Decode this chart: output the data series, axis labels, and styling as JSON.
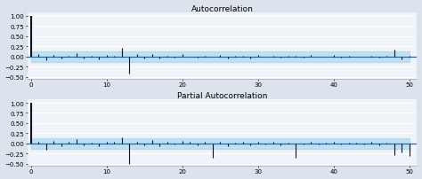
{
  "title_acf": "Autocorrelation",
  "title_pacf": "Partial Autocorrelation",
  "ylim": [
    -0.55,
    1.08
  ],
  "yticks": [
    -0.5,
    -0.25,
    0.0,
    0.25,
    0.5,
    0.75,
    1.0
  ],
  "xlim": [
    -0.5,
    51
  ],
  "xticks": [
    0,
    10,
    20,
    30,
    40,
    50
  ],
  "conf_band": 0.13,
  "background_color": "#dde3ec",
  "plot_bg": "#f0f4f8",
  "bar_color": "#111122",
  "conf_color": "#a8d4f0",
  "line_color": "#1a6ab5",
  "title_fontsize": 6.5,
  "tick_fontsize": 5,
  "acf_values": [
    1.0,
    0.05,
    -0.1,
    0.03,
    -0.05,
    0.02,
    0.08,
    -0.04,
    0.01,
    -0.08,
    0.04,
    0.02,
    0.22,
    -0.42,
    0.05,
    -0.04,
    0.07,
    -0.05,
    0.02,
    -0.02,
    0.06,
    0.0,
    -0.03,
    0.02,
    -0.01,
    0.03,
    -0.05,
    0.01,
    0.02,
    -0.04,
    0.03,
    -0.01,
    0.02,
    -0.03,
    0.01,
    0.01,
    -0.02,
    0.04,
    -0.01,
    0.0,
    0.03,
    -0.02,
    0.01,
    0.0,
    -0.01,
    0.02,
    -0.03,
    0.01,
    0.17,
    -0.07,
    0.02
  ],
  "pacf_values": [
    1.0,
    0.05,
    -0.15,
    0.06,
    -0.08,
    0.03,
    0.1,
    -0.04,
    0.02,
    -0.08,
    0.05,
    0.05,
    0.15,
    -0.5,
    0.04,
    -0.05,
    0.08,
    -0.06,
    0.03,
    -0.02,
    0.07,
    0.04,
    -0.04,
    0.03,
    -0.35,
    0.04,
    -0.06,
    0.02,
    0.03,
    -0.05,
    0.04,
    -0.02,
    0.03,
    -0.04,
    0.02,
    -0.35,
    -0.03,
    0.05,
    -0.02,
    0.01,
    0.04,
    -0.03,
    0.02,
    0.01,
    -0.02,
    0.03,
    -0.04,
    0.02,
    -0.28,
    -0.22,
    -0.3
  ]
}
